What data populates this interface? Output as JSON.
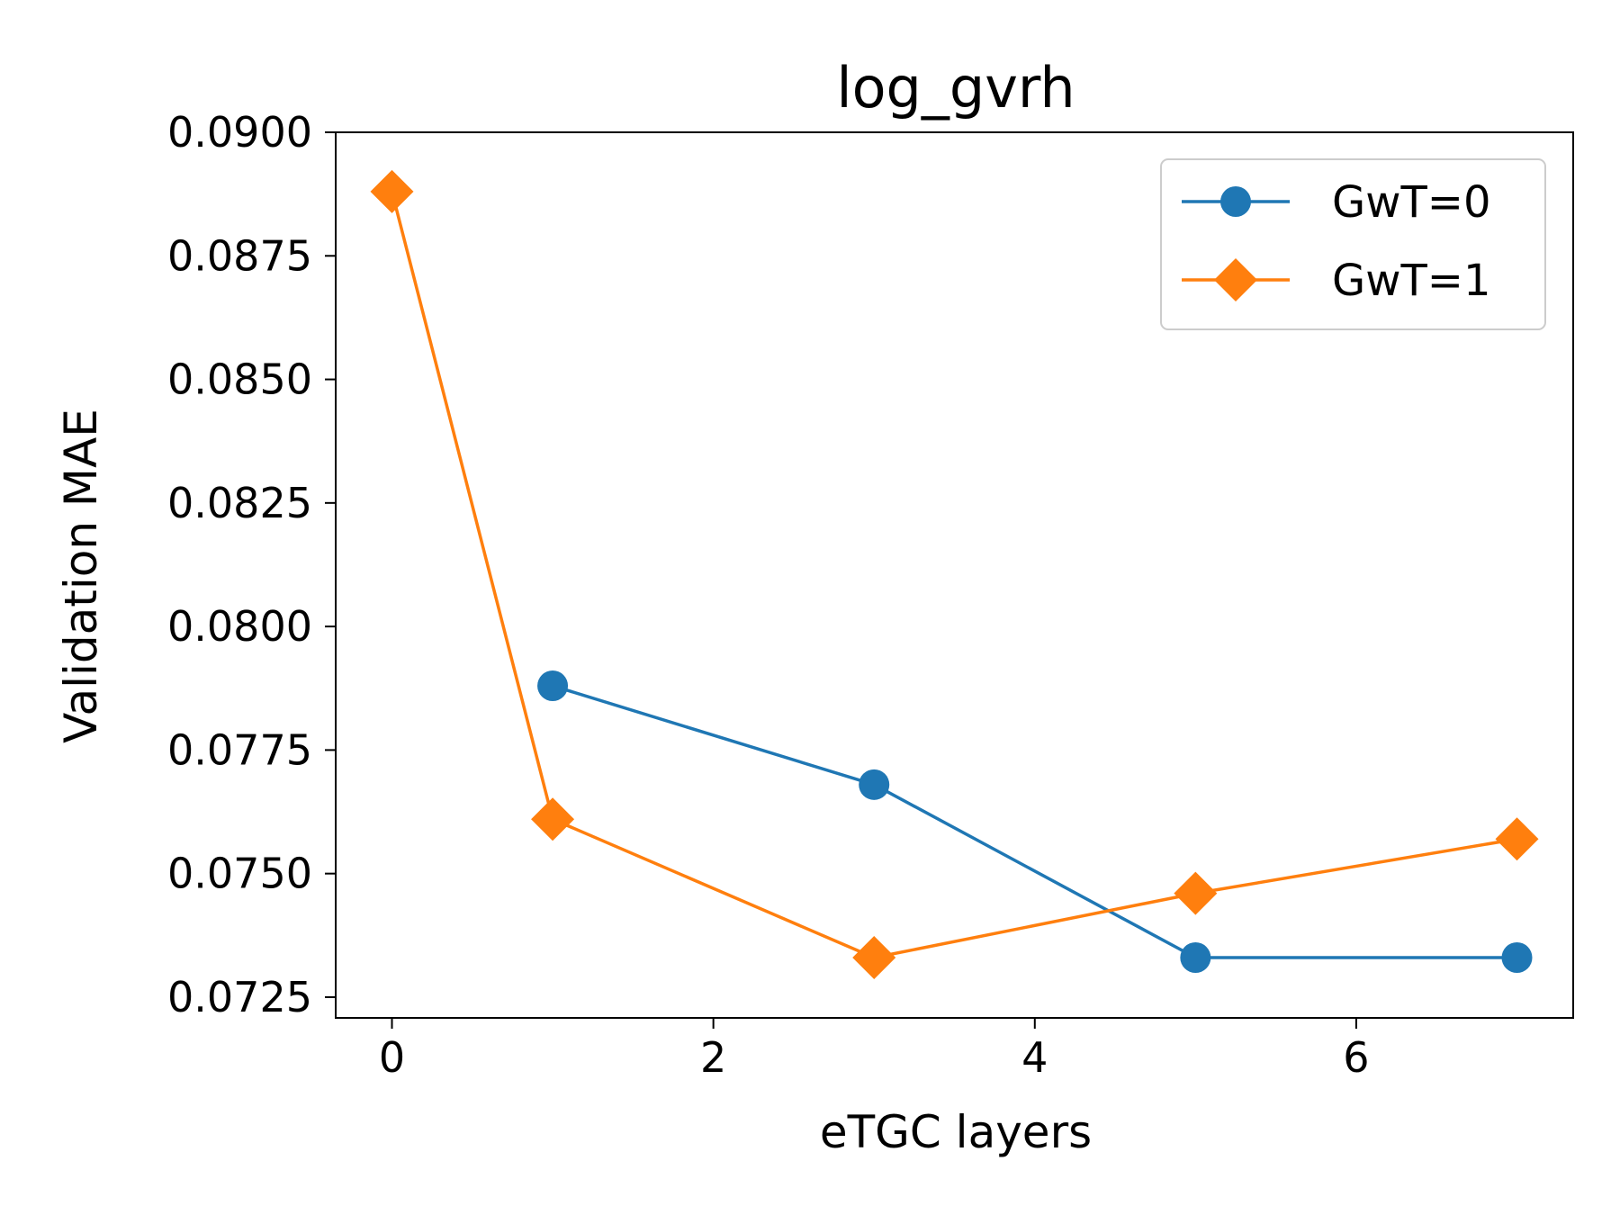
{
  "chart_data": {
    "type": "line",
    "title": "log_gvrh",
    "xlabel": "eTGC layers",
    "ylabel": "Validation MAE",
    "xlim": [
      -0.35,
      7.35
    ],
    "ylim": [
      0.07208,
      0.09
    ],
    "xticks": [
      0,
      2,
      4,
      6
    ],
    "xtick_labels": [
      "0",
      "2",
      "4",
      "6"
    ],
    "yticks": [
      0.0725,
      0.075,
      0.0775,
      0.08,
      0.0825,
      0.085,
      0.0875,
      0.09
    ],
    "ytick_labels": [
      "0.0725",
      "0.0750",
      "0.0775",
      "0.0800",
      "0.0825",
      "0.0850",
      "0.0875",
      "0.0900"
    ],
    "grid": false,
    "legend_position": "top-right",
    "series": [
      {
        "name": "GwT=0",
        "color": "#1f77b4",
        "marker": "circle",
        "x": [
          1,
          3,
          5,
          7
        ],
        "y": [
          0.0788,
          0.0768,
          0.0733,
          0.0733
        ]
      },
      {
        "name": "GwT=1",
        "color": "#ff7f0e",
        "marker": "diamond",
        "x": [
          0,
          1,
          3,
          5,
          7
        ],
        "y": [
          0.0888,
          0.0761,
          0.0733,
          0.0746,
          0.0757
        ]
      }
    ]
  }
}
